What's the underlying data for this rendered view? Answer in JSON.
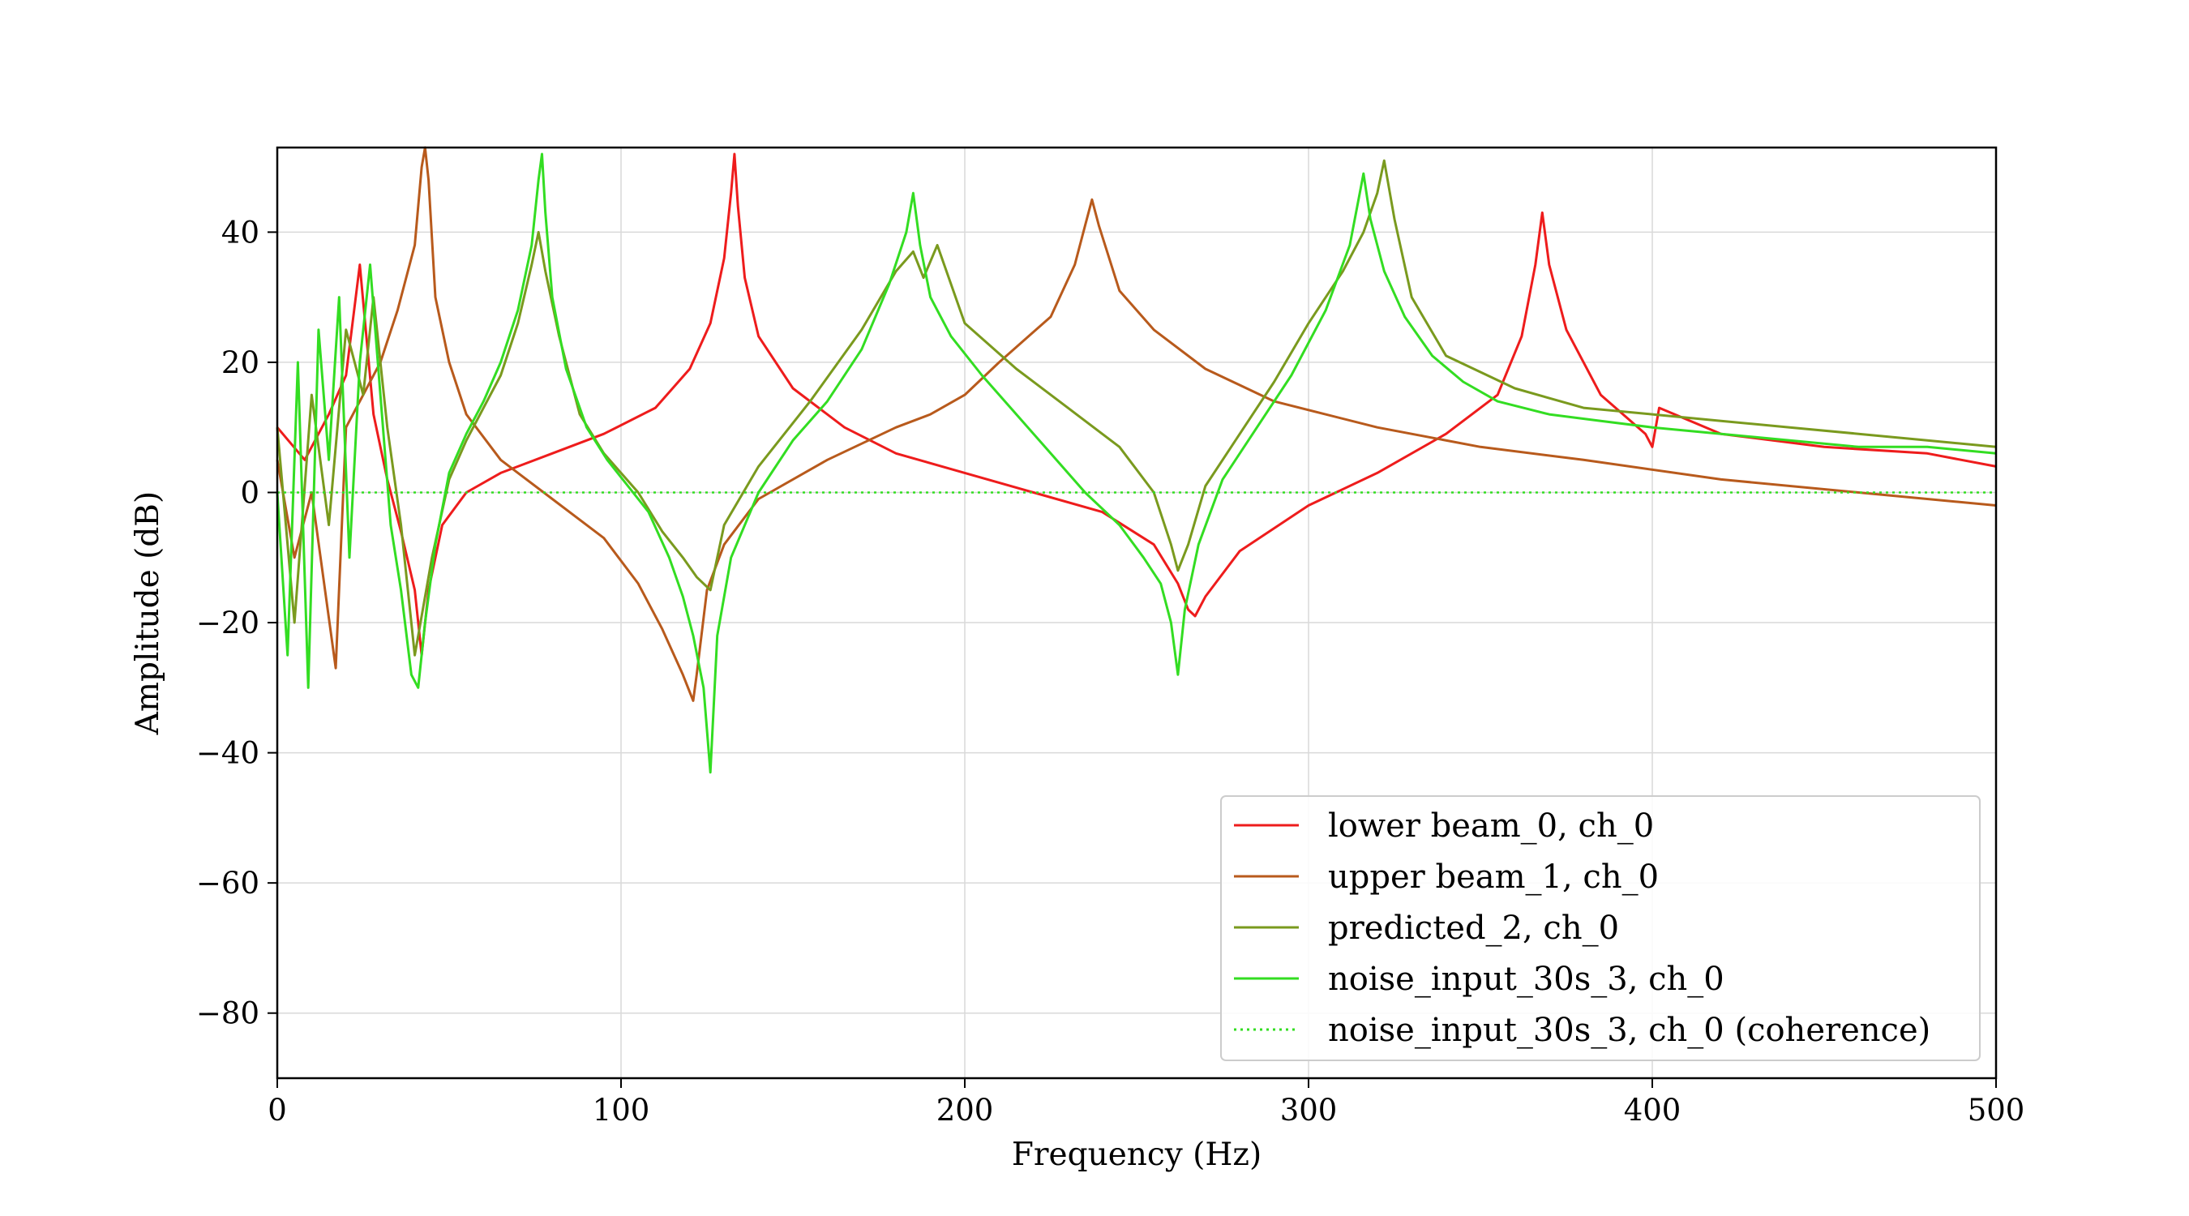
{
  "chart_data": {
    "type": "line",
    "title": "",
    "xlabel": "Frequency (Hz)",
    "ylabel": "Amplitude (dB)",
    "xlim": [
      0,
      500
    ],
    "ylim": [
      -90,
      53
    ],
    "xticks": [
      0,
      100,
      200,
      300,
      400,
      500
    ],
    "yticks": [
      -80,
      -60,
      -40,
      -20,
      0,
      20,
      40
    ],
    "xtick_labels": [
      "0",
      "100",
      "200",
      "300",
      "400",
      "500"
    ],
    "ytick_labels": [
      "−80",
      "−60",
      "−40",
      "−20",
      "0",
      "20",
      "40"
    ],
    "grid": true,
    "legend_position": "lower-right",
    "series": [
      {
        "name": "lower beam_0, ch_0",
        "color": "#ee1c1c",
        "style": "solid",
        "x": [
          0,
          8,
          15,
          20,
          24,
          28,
          32,
          36,
          40,
          42,
          44,
          48,
          55,
          65,
          80,
          95,
          110,
          120,
          126,
          130,
          132,
          133,
          134,
          136,
          140,
          150,
          165,
          180,
          200,
          220,
          240,
          255,
          262,
          265,
          267,
          270,
          280,
          300,
          320,
          340,
          355,
          362,
          366,
          368,
          370,
          375,
          385,
          398,
          400,
          402,
          420,
          450,
          480,
          500
        ],
        "y": [
          10,
          5,
          12,
          18,
          35,
          12,
          2,
          -6,
          -15,
          -25,
          -15,
          -5,
          0,
          3,
          6,
          9,
          13,
          19,
          26,
          36,
          46,
          52,
          44,
          33,
          24,
          16,
          10,
          6,
          3,
          0,
          -3,
          -8,
          -14,
          -18,
          -19,
          -16,
          -9,
          -2,
          3,
          9,
          15,
          24,
          35,
          43,
          35,
          25,
          15,
          9,
          7,
          13,
          9,
          7,
          6,
          4
        ]
      },
      {
        "name": "upper beam_1, ch_0",
        "color": "#b85a1c",
        "style": "solid",
        "x": [
          0,
          5,
          10,
          17,
          20,
          25,
          30,
          35,
          40,
          42,
          43,
          44,
          46,
          50,
          55,
          65,
          80,
          95,
          105,
          112,
          118,
          121,
          122,
          125,
          130,
          140,
          160,
          180,
          190,
          200,
          210,
          225,
          232,
          235,
          237,
          239,
          245,
          255,
          270,
          290,
          320,
          350,
          380,
          420,
          460,
          500
        ],
        "y": [
          5,
          -10,
          0,
          -27,
          10,
          15,
          20,
          28,
          38,
          50,
          56,
          48,
          30,
          20,
          12,
          5,
          -1,
          -7,
          -14,
          -21,
          -28,
          -32,
          -28,
          -15,
          -8,
          -1,
          5,
          10,
          12,
          15,
          20,
          27,
          35,
          41,
          45,
          41,
          31,
          25,
          19,
          14,
          10,
          7,
          5,
          2,
          0,
          -2
        ]
      },
      {
        "name": "predicted_2, ch_0",
        "color": "#7a9a1e",
        "style": "solid",
        "x": [
          0,
          5,
          10,
          15,
          20,
          25,
          28,
          32,
          36,
          40,
          45,
          50,
          55,
          60,
          65,
          70,
          74,
          76,
          78,
          82,
          88,
          95,
          105,
          112,
          118,
          122,
          126,
          130,
          140,
          155,
          170,
          180,
          185,
          188,
          192,
          200,
          215,
          230,
          245,
          255,
          260,
          262,
          265,
          270,
          280,
          290,
          300,
          310,
          316,
          320,
          322,
          325,
          330,
          340,
          360,
          380,
          400,
          420,
          440,
          460,
          480,
          500
        ],
        "y": [
          10,
          -20,
          15,
          -5,
          25,
          15,
          30,
          10,
          -5,
          -25,
          -10,
          2,
          8,
          13,
          18,
          26,
          35,
          40,
          34,
          24,
          12,
          6,
          0,
          -6,
          -10,
          -13,
          -15,
          -5,
          4,
          14,
          25,
          34,
          37,
          33,
          38,
          26,
          19,
          13,
          7,
          0,
          -8,
          -12,
          -8,
          1,
          9,
          17,
          26,
          34,
          40,
          46,
          51,
          42,
          30,
          21,
          16,
          13,
          12,
          11,
          10,
          9,
          8,
          7
        ]
      },
      {
        "name": "noise_input_30s_3, ch_0",
        "color": "#33dd22",
        "style": "solid",
        "x": [
          0,
          3,
          6,
          9,
          12,
          15,
          18,
          21,
          24,
          27,
          30,
          33,
          36,
          39,
          41,
          43,
          46,
          50,
          55,
          60,
          65,
          70,
          74,
          76,
          77,
          78,
          80,
          84,
          90,
          96,
          102,
          108,
          114,
          118,
          121,
          124,
          126,
          128,
          132,
          140,
          150,
          160,
          170,
          178,
          183,
          185,
          187,
          190,
          196,
          205,
          215,
          225,
          235,
          245,
          252,
          257,
          260,
          262,
          264,
          268,
          275,
          285,
          295,
          305,
          312,
          316,
          318,
          322,
          328,
          336,
          345,
          355,
          370,
          385,
          400,
          420,
          440,
          460,
          480,
          500
        ],
        "y": [
          0,
          -25,
          20,
          -30,
          25,
          5,
          30,
          -10,
          20,
          35,
          15,
          -5,
          -15,
          -28,
          -30,
          -20,
          -8,
          3,
          9,
          14,
          20,
          28,
          38,
          48,
          52,
          43,
          30,
          19,
          10,
          5,
          1,
          -3,
          -10,
          -16,
          -22,
          -30,
          -43,
          -22,
          -10,
          0,
          8,
          14,
          22,
          32,
          40,
          46,
          38,
          30,
          24,
          18,
          12,
          6,
          0,
          -5,
          -10,
          -14,
          -20,
          -28,
          -18,
          -8,
          2,
          10,
          18,
          28,
          38,
          49,
          42,
          34,
          27,
          21,
          17,
          14,
          12,
          11,
          10,
          9,
          8,
          7,
          7,
          6
        ]
      },
      {
        "name": "noise_input_30s_3, ch_0 (coherence)",
        "color": "#33dd22",
        "style": "dotted",
        "x": [
          0,
          500
        ],
        "y": [
          0,
          0
        ]
      }
    ]
  }
}
